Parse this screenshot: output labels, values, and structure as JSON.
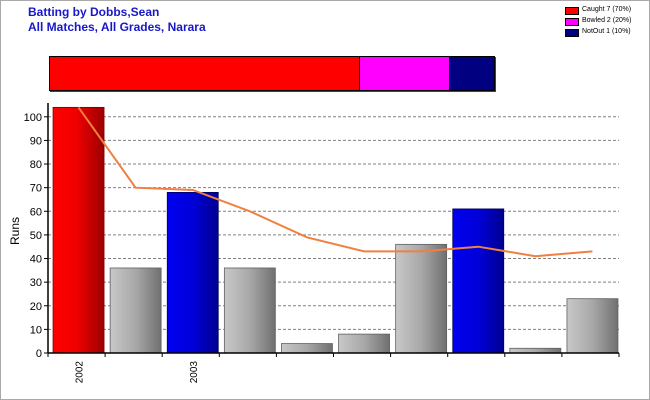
{
  "header": {
    "title_line1": "Batting by Dobbs,Sean",
    "title_line2": "All Matches, All Grades, Narara"
  },
  "legend": [
    {
      "label": "Caught 7 (70%)",
      "color": "#ff0000"
    },
    {
      "label": "Bowled 2 (20%)",
      "color": "#ff00ff"
    },
    {
      "label": "NotOut 1 (10%)",
      "color": "#000080"
    }
  ],
  "summary": [
    {
      "name": "Caught",
      "fraction": 0.7,
      "color": "#ff0000"
    },
    {
      "name": "Bowled",
      "fraction": 0.2,
      "color": "#ff00ff"
    },
    {
      "name": "NotOut",
      "fraction": 0.1,
      "color": "#000080"
    }
  ],
  "chart_data": {
    "type": "bar",
    "ylabel": "Runs",
    "xlabel": "",
    "ylim": [
      0,
      105
    ],
    "yticks": [
      0,
      10,
      20,
      30,
      40,
      50,
      60,
      70,
      80,
      90,
      100
    ],
    "grid": true,
    "x_tick_labels": [
      "2002",
      "",
      "2003",
      "",
      "",
      "",
      "",
      "",
      "",
      ""
    ],
    "values": [
      104,
      36,
      68,
      36,
      4,
      8,
      46,
      61,
      2,
      23
    ],
    "bar_colors": [
      "red",
      "gray",
      "blue",
      "gray",
      "gray",
      "gray",
      "gray",
      "blue",
      "gray",
      "gray"
    ],
    "trend": [
      104,
      70,
      69,
      60,
      49,
      43,
      43,
      45,
      41,
      43
    ],
    "trend_color": "#f08040"
  }
}
